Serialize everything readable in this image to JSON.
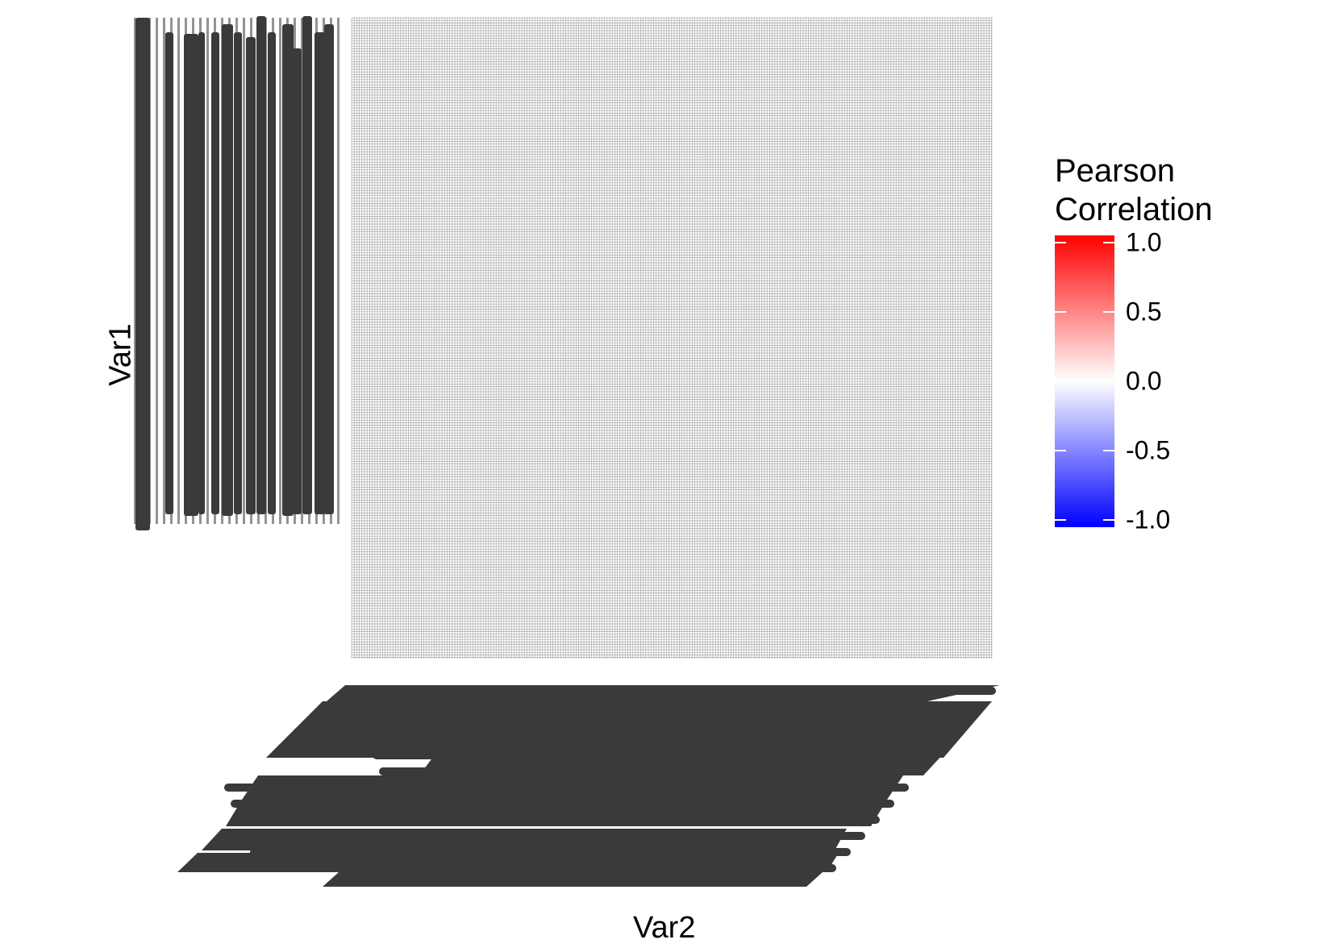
{
  "chart_data": {
    "type": "heatmap",
    "xlabel": "Var2",
    "ylabel": "Var1",
    "grid": true,
    "legend_placement": "right",
    "legend": {
      "title_lines": [
        "Pearson",
        "Correlation"
      ],
      "ticks": [
        "1.0",
        "0.5",
        "0.0",
        "-0.5",
        "-1.0"
      ],
      "tick_values": [
        1.0,
        0.5,
        0.0,
        -0.5,
        -1.0
      ],
      "range": [
        -1.0,
        1.0
      ],
      "colors": {
        "high": "#ff0000",
        "mid": "#ffffff",
        "low": "#0000ff"
      }
    },
    "visible_tick_labels": [
      "L1_C01_F1079",
      "L1_C24_F616"
    ],
    "cell_fill_color": "#ffffff",
    "cell_outline_color": "#9a9a9a",
    "tick_label_color": "#3a3a3a"
  }
}
